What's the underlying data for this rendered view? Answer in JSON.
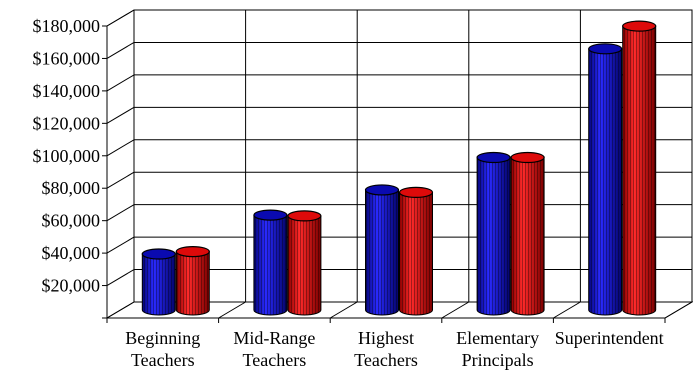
{
  "chart_data": {
    "type": "bar",
    "title": "",
    "xlabel": "",
    "ylabel": "",
    "ylim": [
      0,
      180000
    ],
    "yticks": [
      "$20,000",
      "$40,000",
      "$60,000",
      "$80,000",
      "$100,000",
      "$120,000",
      "$140,000",
      "$160,000",
      "$180,000"
    ],
    "grid": true,
    "legend": "none",
    "categories": [
      [
        "Beginning",
        "Teachers"
      ],
      [
        "Mid-Range",
        "Teachers"
      ],
      [
        "Highest",
        "Teachers"
      ],
      [
        "Elementary",
        "Principals"
      ],
      [
        "Superintendent"
      ]
    ],
    "series": [
      {
        "values": [
          34500,
          58500,
          74000,
          94000,
          161000
        ],
        "color": "#1010c0"
      },
      {
        "values": [
          36000,
          58000,
          72500,
          94000,
          175000
        ],
        "color": "#ee1010"
      }
    ]
  }
}
